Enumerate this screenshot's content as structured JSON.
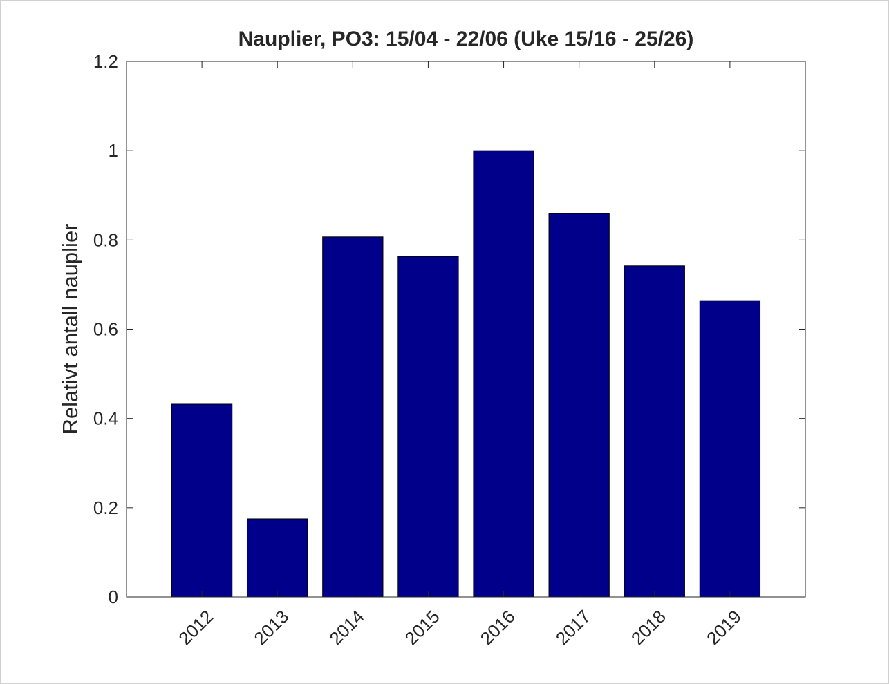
{
  "chart_data": {
    "type": "bar",
    "title": "Nauplier, PO3: 15/04 - 22/06 (Uke 15/16 - 25/26)",
    "y_label": "Relativt antall nauplier",
    "categories": [
      "2012",
      "2013",
      "2014",
      "2015",
      "2016",
      "2017",
      "2018",
      "2019"
    ],
    "values": [
      0.432,
      0.175,
      0.807,
      0.763,
      1.0,
      0.859,
      0.742,
      0.664
    ],
    "color": "#00008b",
    "ylim": [
      0,
      1.2
    ],
    "yticks": [
      0,
      0.2,
      0.4,
      0.6,
      0.8,
      1,
      1.2
    ],
    "grid": false
  }
}
